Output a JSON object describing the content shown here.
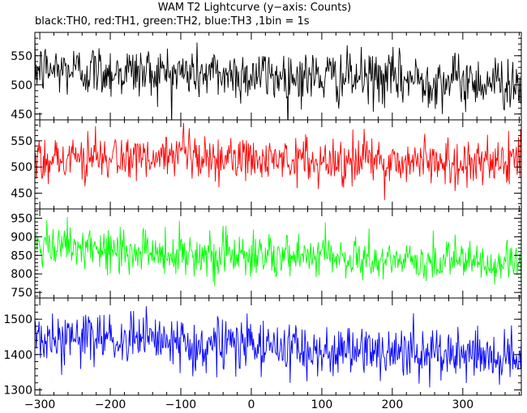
{
  "title": "WAM T2 Lightcurve (y−axis: Counts)",
  "subtitle": "black:TH0, red:TH1, green:TH2, blue:TH3 ,1bin = 1s",
  "chart_data": [
    {
      "type": "line",
      "series": [
        {
          "name": "TH0",
          "color": "#000000"
        }
      ],
      "x": {
        "range": [
          -307,
          383
        ],
        "step": 1,
        "ticks": [
          -300,
          -200,
          -100,
          0,
          100,
          200,
          300
        ]
      },
      "ylim": [
        440,
        590
      ],
      "yticks": [
        450,
        500,
        550
      ],
      "trend": {
        "start": 527,
        "end": 504
      },
      "noise_sd": 23
    },
    {
      "type": "line",
      "series": [
        {
          "name": "TH1",
          "color": "#ff0000"
        }
      ],
      "x": {
        "range": [
          -307,
          383
        ],
        "step": 1,
        "ticks": [
          -300,
          -200,
          -100,
          0,
          100,
          200,
          300
        ]
      },
      "ylim": [
        420,
        590
      ],
      "yticks": [
        450,
        500,
        550
      ],
      "trend": {
        "start": 518,
        "end": 508
      },
      "noise_sd": 23
    },
    {
      "type": "line",
      "series": [
        {
          "name": "TH2",
          "color": "#00ff00"
        }
      ],
      "x": {
        "range": [
          -307,
          383
        ],
        "step": 1,
        "ticks": [
          -300,
          -200,
          -100,
          0,
          100,
          200,
          300
        ]
      },
      "ylim": [
        735,
        975
      ],
      "yticks": [
        750,
        800,
        850,
        900,
        950
      ],
      "trend": {
        "start": 870,
        "end": 825
      },
      "noise_sd": 30
    },
    {
      "type": "line",
      "series": [
        {
          "name": "TH3",
          "color": "#0000ff"
        }
      ],
      "x": {
        "range": [
          -307,
          383
        ],
        "step": 1,
        "ticks": [
          -300,
          -200,
          -100,
          0,
          100,
          200,
          300
        ]
      },
      "ylim": [
        1285,
        1560
      ],
      "yticks": [
        1300,
        1400,
        1500
      ],
      "trend": {
        "start": 1450,
        "end": 1390
      },
      "noise_sd": 38
    }
  ]
}
